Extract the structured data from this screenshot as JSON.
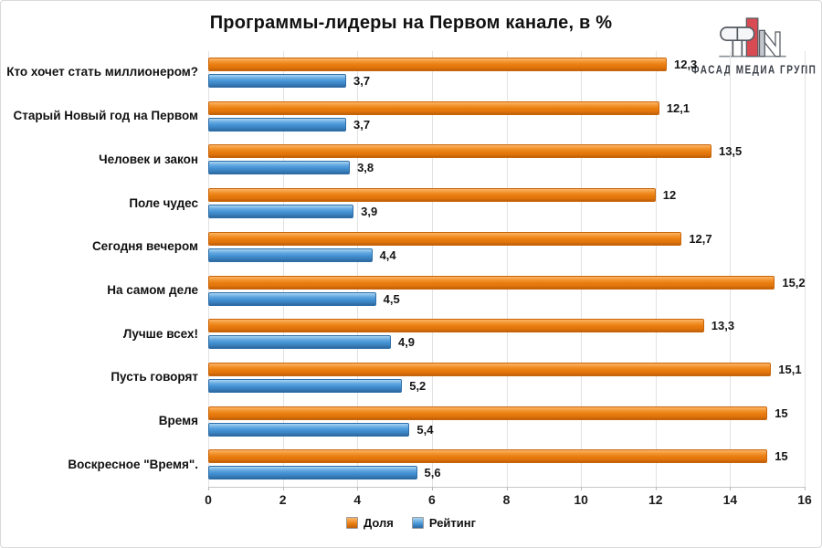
{
  "title": "Программы-лидеры на Первом канале, в %",
  "logo": {
    "text": "ФАСАД МЕДИА ГРУПП"
  },
  "legend": {
    "share_label": "Доля",
    "rating_label": "Рейтинг"
  },
  "colors": {
    "share": "#E8790E",
    "rating": "#4392D4",
    "gridline": "#E2E2E2",
    "logo_red": "#D84B53",
    "logo_gray": "#8A8F98"
  },
  "chart_data": {
    "type": "bar",
    "orientation": "horizontal",
    "title": "Программы-лидеры на Первом канале, в %",
    "categories": [
      "Кто хочет стать миллионером?",
      "Старый Новый год на Первом",
      "Человек и закон",
      "Поле чудес",
      "Сегодня вечером",
      "На самом деле",
      "Лучше всех!",
      "Пусть говорят",
      "Время",
      "Воскресное \"Время\"."
    ],
    "series": [
      {
        "name": "Доля",
        "color": "#E8790E",
        "values": [
          12.3,
          12.1,
          13.5,
          12,
          12.7,
          15.2,
          13.3,
          15.1,
          15,
          15
        ],
        "labels": [
          "12,3",
          "12,1",
          "13,5",
          "12",
          "12,7",
          "15,2",
          "13,3",
          "15,1",
          "15",
          "15"
        ]
      },
      {
        "name": "Рейтинг",
        "color": "#4392D4",
        "values": [
          3.7,
          3.7,
          3.8,
          3.9,
          4.4,
          4.5,
          4.9,
          5.2,
          5.4,
          5.6
        ],
        "labels": [
          "3,7",
          "3,7",
          "3,8",
          "3,9",
          "4,4",
          "4,5",
          "4,9",
          "5,2",
          "5,4",
          "5,6"
        ]
      }
    ],
    "xlim": [
      0,
      16
    ],
    "xticks": [
      "0",
      "2",
      "4",
      "6",
      "8",
      "10",
      "12",
      "14",
      "16"
    ],
    "grid": true,
    "legend_position": "bottom"
  }
}
